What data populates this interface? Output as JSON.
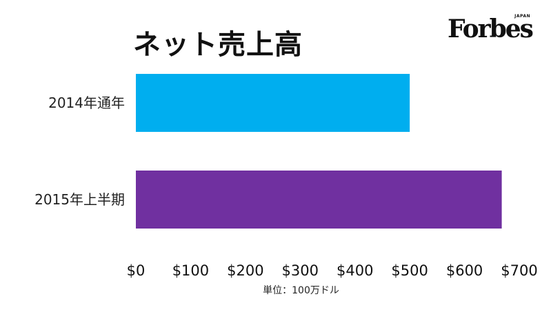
{
  "brand": {
    "name": "Forbes",
    "sub": "JAPAN"
  },
  "unit_note": "単位：100万ドル",
  "chart_data": {
    "type": "bar",
    "orientation": "horizontal",
    "title": "ネット売上高",
    "categories": [
      "2014年通年",
      "2015年上半期"
    ],
    "values": [
      500,
      668
    ],
    "colors": [
      "#00aeef",
      "#7030a0"
    ],
    "xlim": [
      0,
      700
    ],
    "xticks": [
      0,
      100,
      200,
      300,
      400,
      500,
      600,
      700
    ],
    "xtick_labels": [
      "$0",
      "$100",
      "$200",
      "$300",
      "$400",
      "$500",
      "$600",
      "$700"
    ],
    "grid": false,
    "legend": false
  }
}
